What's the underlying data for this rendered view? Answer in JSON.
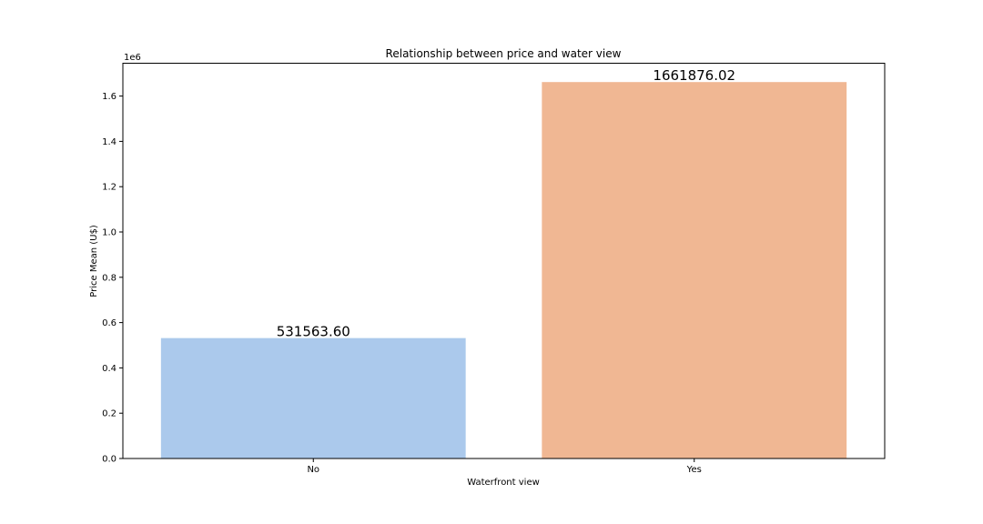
{
  "chart_data": {
    "type": "bar",
    "title": "Relationship between price and water view",
    "xlabel": "Waterfront view",
    "ylabel": "Price Mean (U$)",
    "offset_label": "1e6",
    "categories": [
      "No",
      "Yes"
    ],
    "values": [
      531563.6,
      1661876.02
    ],
    "value_labels": [
      "531563.60",
      "1661876.02"
    ],
    "colors": [
      "#abc9ec",
      "#f0b793"
    ],
    "ylim": [
      0,
      1745000
    ],
    "yticks": [
      0,
      200000,
      400000,
      600000,
      800000,
      1000000,
      1200000,
      1400000,
      1600000
    ],
    "ytick_labels": [
      "0.0",
      "0.2",
      "0.4",
      "0.6",
      "0.8",
      "1.0",
      "1.2",
      "1.4",
      "1.6"
    ],
    "grid": false,
    "legend": "none"
  }
}
